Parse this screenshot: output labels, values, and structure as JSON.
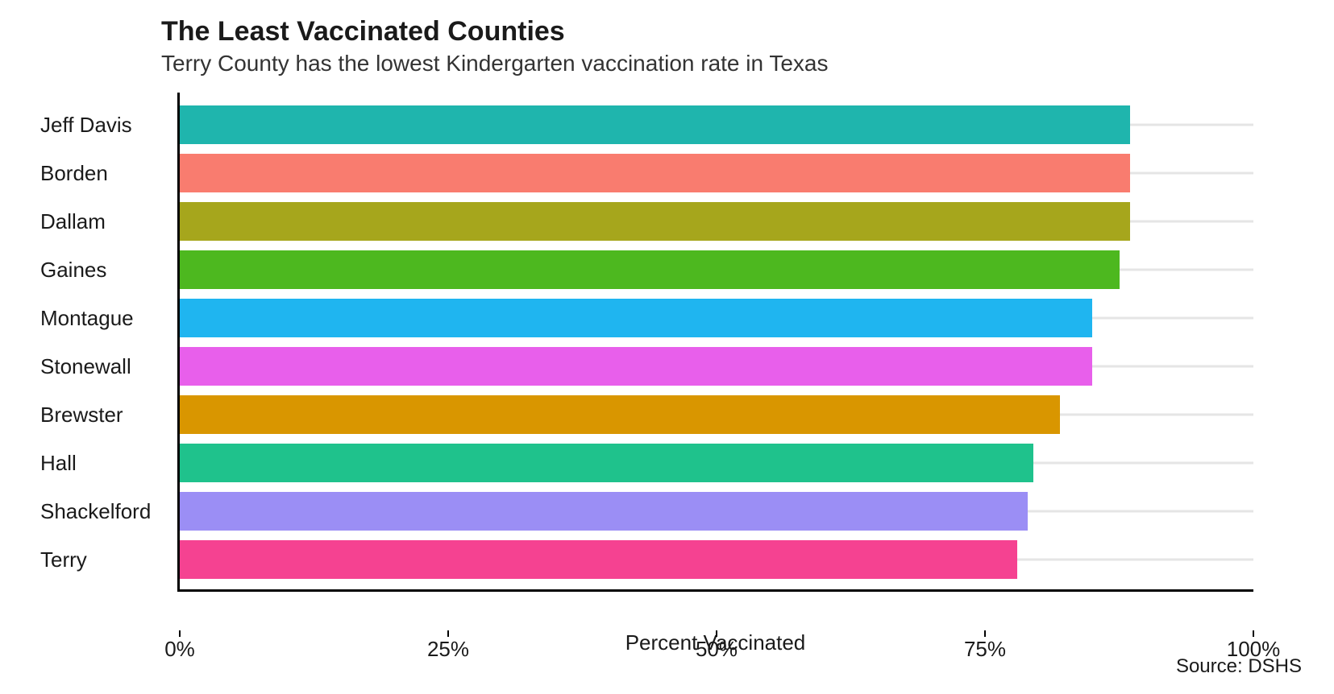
{
  "chart": {
    "type": "bar-horizontal",
    "title": "The Least Vaccinated Counties",
    "subtitle": "Terry County has the lowest Kindergarten vaccination rate in Texas",
    "xlabel": "Percent Vaccinated",
    "source": "Source: DSHS",
    "xlim": [
      0,
      100
    ],
    "xtick_step": 25,
    "xticks": [
      "0%",
      "25%",
      "50%",
      "75%",
      "100%"
    ],
    "xtick_values": [
      0,
      25,
      50,
      75,
      100
    ],
    "background_color": "#ffffff",
    "grid_color": "#e5e5e5",
    "axis_color": "#000000",
    "title_fontsize": 34,
    "subtitle_fontsize": 28,
    "label_fontsize": 26,
    "tick_fontsize": 26,
    "bars": [
      {
        "label": "Jeff Davis",
        "value": 88.5,
        "color": "#1fb5ad"
      },
      {
        "label": "Borden",
        "value": 88.5,
        "color": "#f97c6f"
      },
      {
        "label": "Dallam",
        "value": 88.5,
        "color": "#a6a61c"
      },
      {
        "label": "Gaines",
        "value": 87.5,
        "color": "#4db81f"
      },
      {
        "label": "Montague",
        "value": 85.0,
        "color": "#1fb5f0"
      },
      {
        "label": "Stonewall",
        "value": 85.0,
        "color": "#e85feb"
      },
      {
        "label": "Brewster",
        "value": 82.0,
        "color": "#d99600"
      },
      {
        "label": "Hall",
        "value": 79.5,
        "color": "#1fc28c"
      },
      {
        "label": "Shackelford",
        "value": 79.0,
        "color": "#9b8ef5"
      },
      {
        "label": "Terry",
        "value": 78.0,
        "color": "#f54291"
      }
    ]
  }
}
